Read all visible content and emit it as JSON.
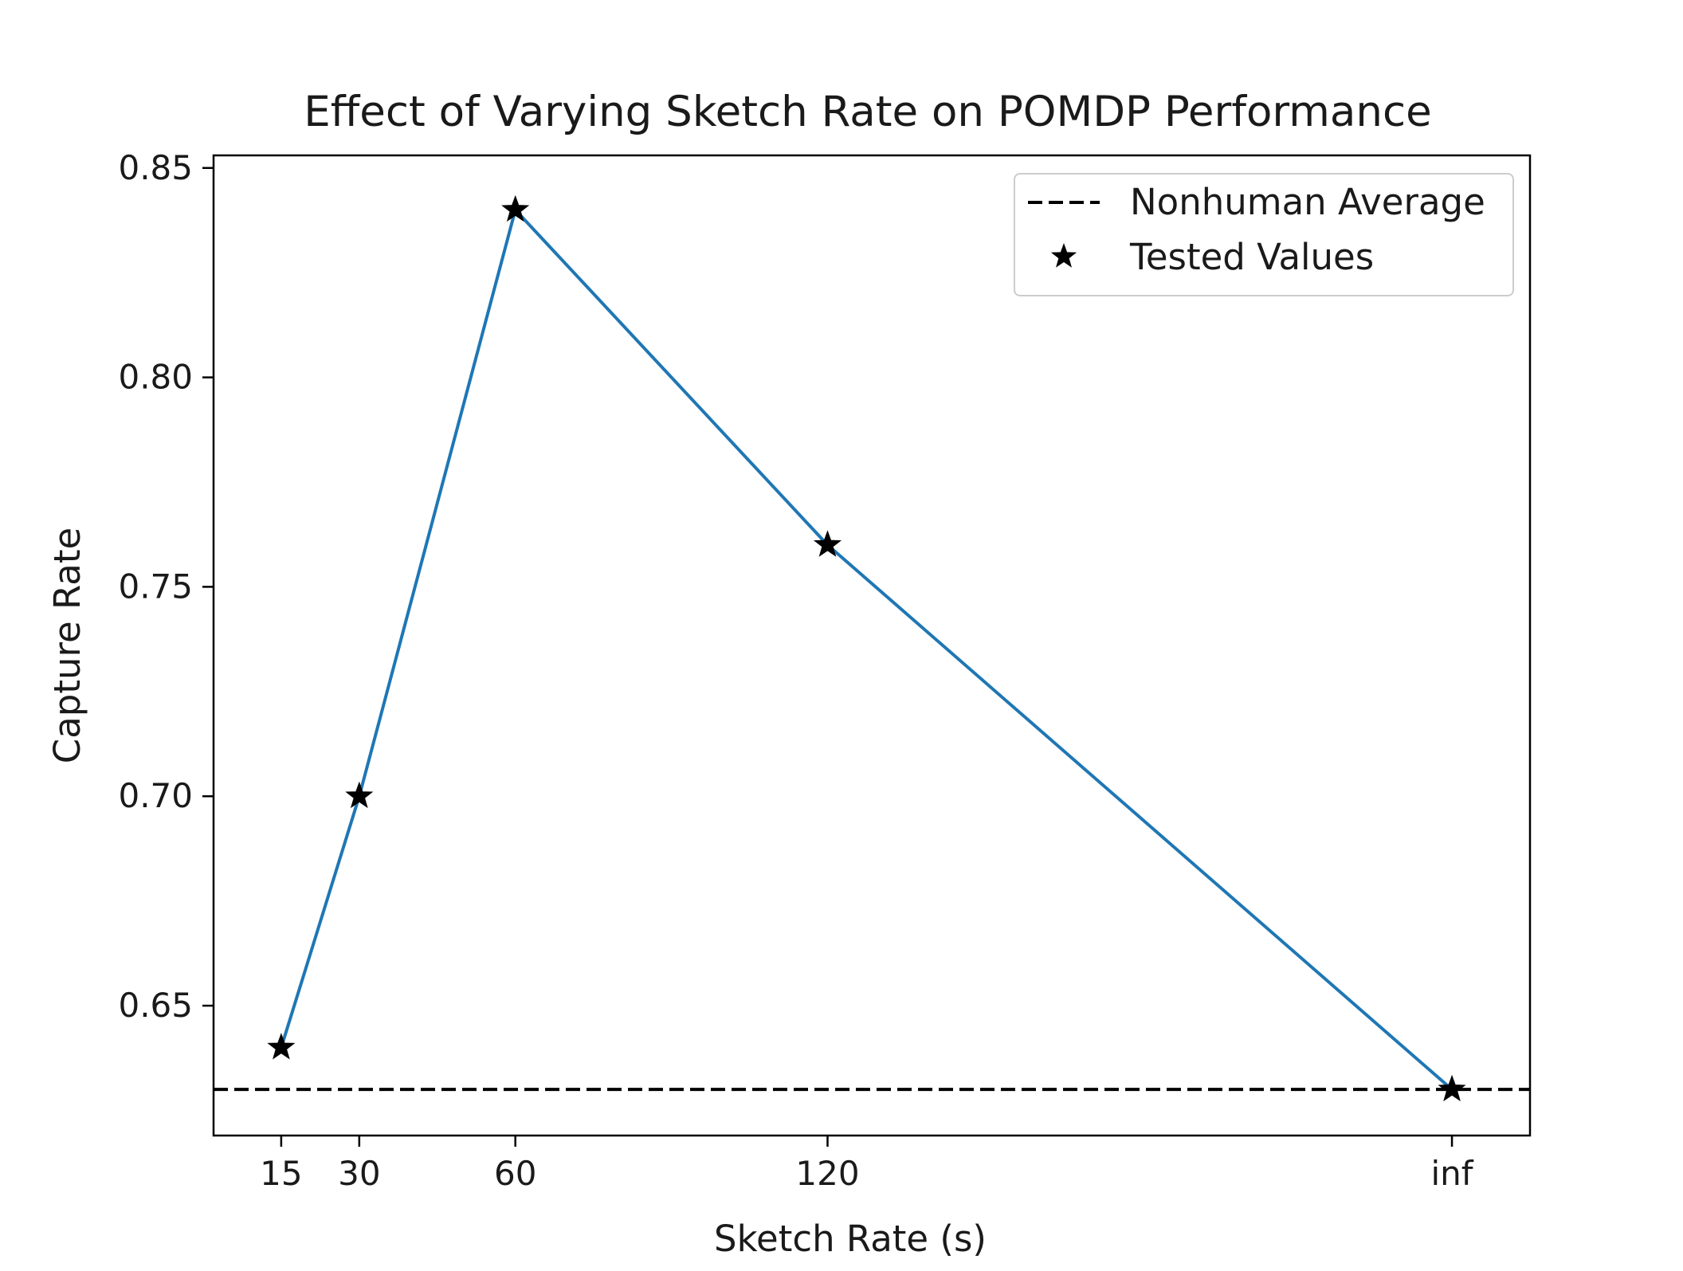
{
  "chart_data": {
    "type": "line",
    "title": "Effect of Varying Sketch Rate on POMDP Performance",
    "xlabel": "Sketch Rate (s)",
    "ylabel": "Capture Rate",
    "categories": [
      "15",
      "30",
      "60",
      "120",
      "inf"
    ],
    "x_positions": [
      15,
      30,
      60,
      120,
      240
    ],
    "xlim": [
      2,
      255
    ],
    "ylim": [
      0.619,
      0.853
    ],
    "yticks": [
      0.65,
      0.7,
      0.75,
      0.8,
      0.85
    ],
    "ytick_labels": [
      "0.65",
      "0.70",
      "0.75",
      "0.80",
      "0.85"
    ],
    "series": [
      {
        "name": "Capture Rate",
        "values": [
          0.64,
          0.7,
          0.84,
          0.76,
          0.63
        ],
        "color": "#1f77b4"
      },
      {
        "name": "Tested Values",
        "values": [
          0.64,
          0.7,
          0.84,
          0.76,
          0.63
        ],
        "marker": "star",
        "color": "#000000"
      }
    ],
    "reference_lines": [
      {
        "name": "Nonhuman Average",
        "y": 0.63,
        "style": "dashed",
        "color": "#000000"
      }
    ],
    "legend": {
      "position": "top-right",
      "entries": [
        "Nonhuman Average",
        "Tested Values"
      ]
    },
    "grid": false
  }
}
